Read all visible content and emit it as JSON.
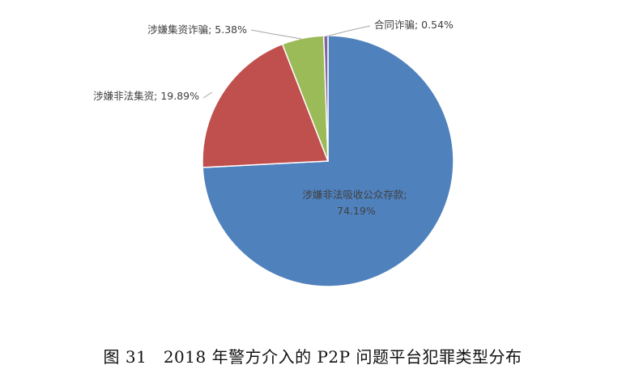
{
  "caption": "图 31　2018 年警方介入的 P2P 问题平台犯罪类型分布",
  "chart_data": {
    "type": "pie",
    "title": "",
    "slices": [
      {
        "name": "涉嫌非法吸收公众存款",
        "value": 74.19,
        "label": "涉嫌非法吸收公众存款;",
        "label2": "74.19%",
        "color": "#4f81bd"
      },
      {
        "name": "涉嫌非法集资",
        "value": 19.89,
        "label": "涉嫌非法集资; 19.89%",
        "color": "#c0504d"
      },
      {
        "name": "涉嫌集资诈骗",
        "value": 5.38,
        "label": "涉嫌集资诈骗; 5.38%",
        "color": "#9bbb59"
      },
      {
        "name": "合同诈骗",
        "value": 0.54,
        "label": "合同诈骗; 0.54%",
        "color": "#8064a2"
      }
    ]
  }
}
